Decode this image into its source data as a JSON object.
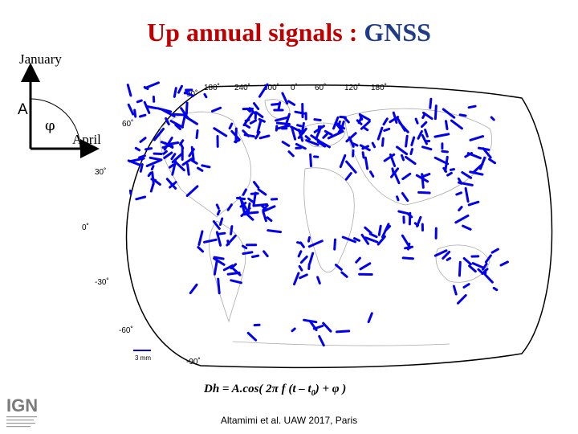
{
  "title": {
    "main": "Up annual signals : ",
    "highlight": "GNSS"
  },
  "phase_diagram": {
    "up_label": "January",
    "right_label": "April",
    "amplitude_symbol": "A",
    "phase_symbol": "φ"
  },
  "map": {
    "projection": "Winkel Tripel",
    "top_ticks": [
      "180˚",
      "240˚",
      "300˚",
      "0˚",
      "60˚",
      "120˚",
      "180˚"
    ],
    "lat_ticks": [
      "90˚",
      "60˚",
      "30˚",
      "0˚",
      "-30˚",
      "-60˚",
      "-90˚"
    ],
    "scale_label": "3 mm",
    "colors": {
      "vectors": "#0000ee",
      "coastline": "#aaaaaa",
      "border": "#000000"
    }
  },
  "formula": {
    "prefix": "Dh = A.cos( 2",
    "pi": "π",
    "f": " f (t – t",
    "sub": "0",
    "suffix": ") + ",
    "phi": "φ",
    "end": " )"
  },
  "citation": "Altamimi et al. UAW 2017, Paris",
  "logo": {
    "text": "IGN"
  }
}
